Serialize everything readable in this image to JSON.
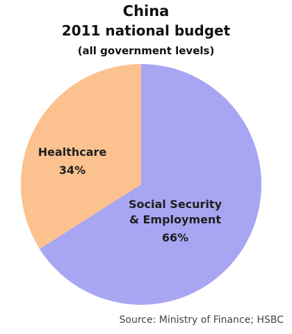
{
  "chart_data": {
    "type": "pie",
    "title": "China",
    "subtitle": "2011 national budget",
    "note": "(all government levels)",
    "categories": [
      "Social Security & Employment",
      "Healthcare"
    ],
    "values": [
      66,
      34
    ],
    "value_labels": [
      "66%",
      "34%"
    ],
    "colors": [
      "#a8a6f3",
      "#fbc18f"
    ],
    "source": "Source: Ministry of Finance; HSBC"
  }
}
